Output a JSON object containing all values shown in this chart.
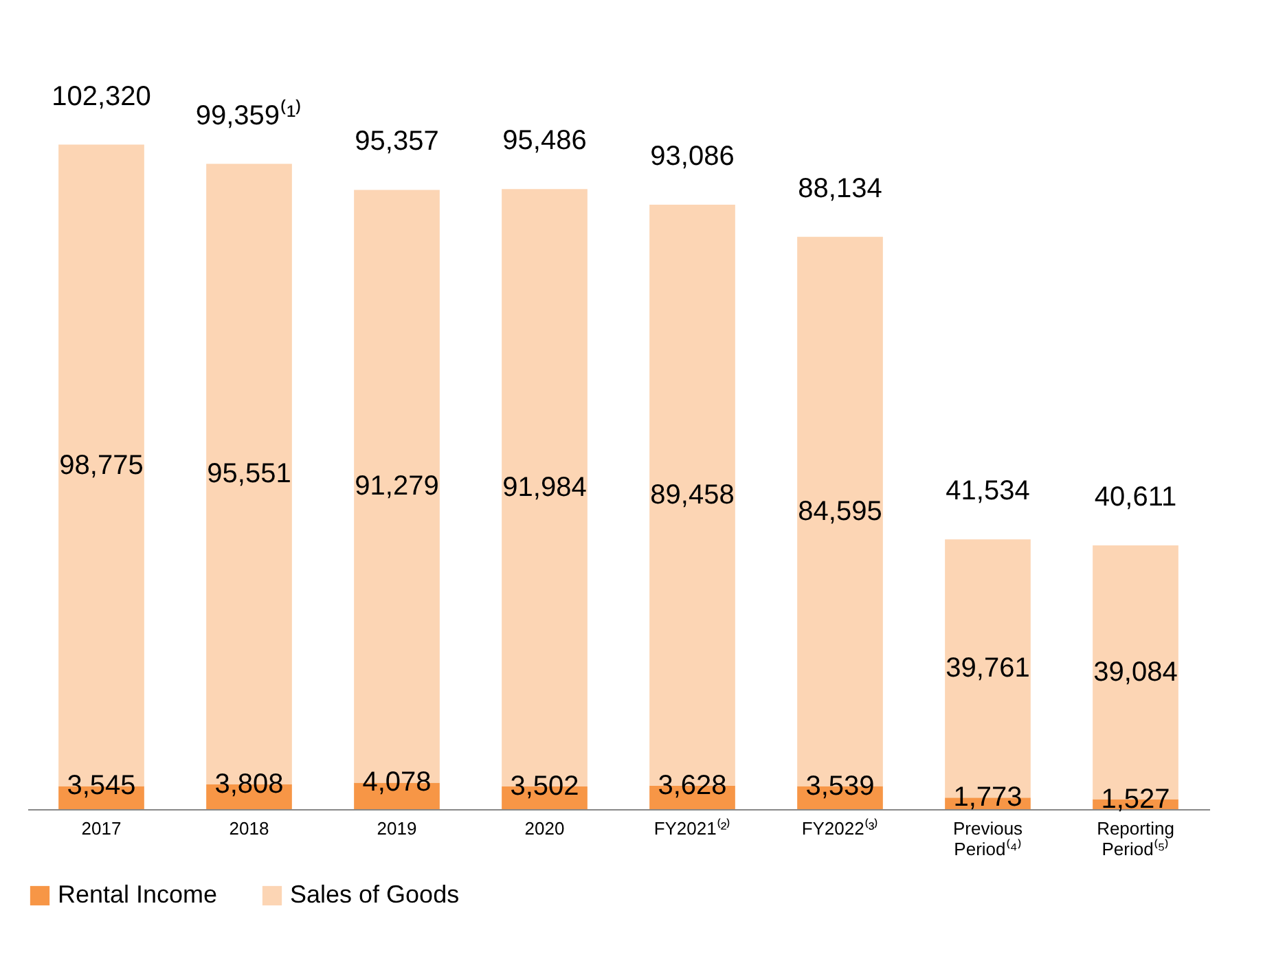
{
  "chart_data": {
    "type": "bar",
    "stacked": true,
    "legend": "bottom",
    "categories": [
      "2017",
      "2018",
      "2019",
      "2020",
      "FY2021⁽²⁾",
      "FY2022⁽³⁾",
      "Previous Period⁽⁴⁾",
      "Reporting Period⁽⁵⁾"
    ],
    "series": [
      {
        "name": "Rental Income",
        "color": "#f79646",
        "values": [
          3545,
          3808,
          4078,
          3502,
          3628,
          3539,
          1773,
          1527
        ],
        "value_labels": [
          "3,545",
          "3,808",
          "4,078",
          "3,502",
          "3,628",
          "3,539",
          "1,773",
          "1,527"
        ]
      },
      {
        "name": "Sales of Goods",
        "color": "#fcd5b4",
        "values": [
          98775,
          95551,
          91279,
          91984,
          89458,
          84595,
          39761,
          39084
        ],
        "value_labels": [
          "98,775",
          "95,551",
          "91,279",
          "91,984",
          "89,458",
          "84,595",
          "39,761",
          "39,084"
        ]
      }
    ],
    "totals": [
      "102,320",
      "99,359⁽¹⁾",
      "95,357",
      "95,486",
      "93,086",
      "88,134",
      "41,534",
      "40,611"
    ]
  }
}
